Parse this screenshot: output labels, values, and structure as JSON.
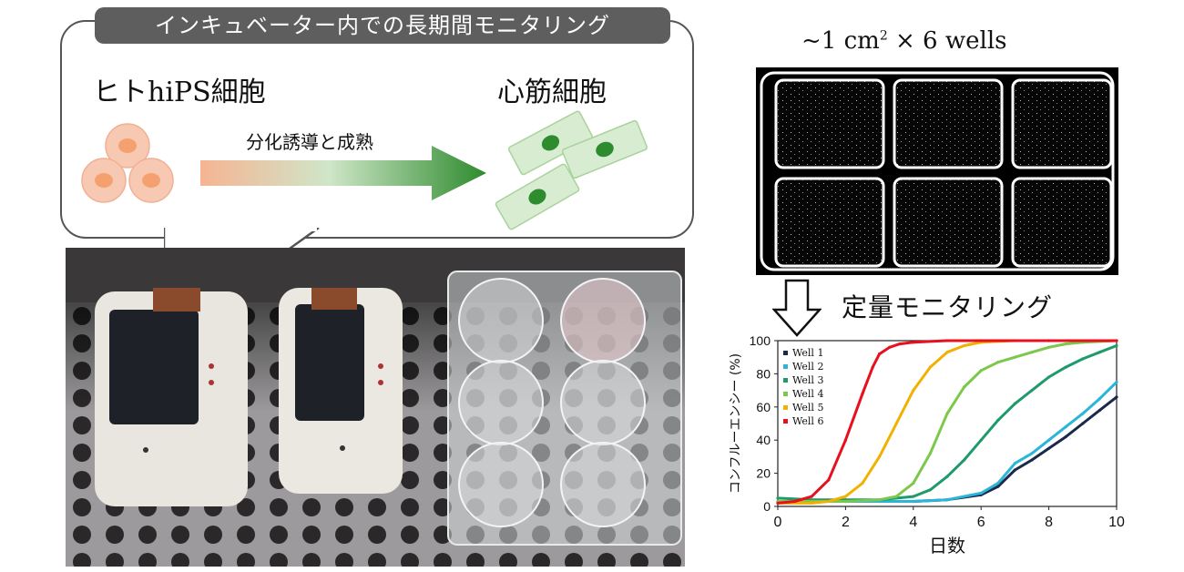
{
  "banner": "インキュベーター内での長期間モニタリング",
  "hips_label": "ヒトhiPS細胞",
  "cardio_label": "心筋細胞",
  "arrow_label": "分化誘導と成熟",
  "plate_caption": {
    "prefix": "~1 cm",
    "sup": "2",
    "suffix": " × 6 wells"
  },
  "monitor_label": "定量モニタリング",
  "colors": {
    "arrow_start": "#f6b493",
    "arrow_end": "#2e8b2e",
    "cell_pink": "#f8c9b2",
    "cell_nucleus": "#f5a06f",
    "cardio_fill": "#d7ecd0",
    "cardio_nucleus": "#2e8b2e"
  },
  "chart_data": {
    "type": "line",
    "xlabel": "日数",
    "ylabel": "コンフルーエンシー (%)",
    "xlim": [
      0,
      10
    ],
    "ylim": [
      0,
      100
    ],
    "xticks": [
      "0",
      "2",
      "4",
      "6",
      "8",
      "10"
    ],
    "yticks": [
      "0",
      "20",
      "40",
      "60",
      "80",
      "100"
    ],
    "legend_position": "top-left",
    "series": [
      {
        "name": "Well 1",
        "color": "#1a2a4a",
        "x": [
          0,
          1,
          2,
          3,
          4,
          5,
          6,
          6.5,
          7,
          7.5,
          8,
          8.5,
          9,
          9.5,
          10
        ],
        "values": [
          3,
          3,
          3,
          3,
          3,
          4,
          7,
          12,
          22,
          28,
          35,
          42,
          50,
          58,
          66
        ]
      },
      {
        "name": "Well 2",
        "color": "#2bb5d8",
        "x": [
          0,
          1,
          2,
          3,
          4,
          5,
          6,
          6.5,
          7,
          7.5,
          8,
          8.5,
          9,
          9.5,
          10
        ],
        "values": [
          3,
          3,
          3,
          3,
          3,
          4,
          8,
          14,
          26,
          32,
          40,
          48,
          56,
          65,
          75
        ]
      },
      {
        "name": "Well 3",
        "color": "#1f9a6a",
        "x": [
          0,
          1,
          2,
          3,
          4,
          4.5,
          5,
          5.5,
          6,
          6.5,
          7,
          7.5,
          8,
          8.5,
          9,
          9.5,
          10
        ],
        "values": [
          5,
          4,
          4,
          4,
          6,
          10,
          18,
          28,
          40,
          52,
          62,
          70,
          78,
          84,
          89,
          93,
          97
        ]
      },
      {
        "name": "Well 4",
        "color": "#7cc84a",
        "x": [
          0,
          1,
          2,
          3,
          3.5,
          4,
          4.5,
          5,
          5.5,
          6,
          6.5,
          7,
          7.5,
          8,
          8.5,
          9,
          10
        ],
        "values": [
          3,
          3,
          3,
          4,
          6,
          14,
          32,
          56,
          72,
          82,
          87,
          90,
          93,
          96,
          98,
          99,
          100
        ]
      },
      {
        "name": "Well 5",
        "color": "#f2b100",
        "x": [
          0,
          1,
          1.5,
          2,
          2.5,
          3,
          3.5,
          4,
          4.5,
          5,
          5.5,
          6,
          7,
          8,
          10
        ],
        "values": [
          2,
          2,
          3,
          6,
          14,
          30,
          50,
          70,
          84,
          93,
          97,
          99,
          100,
          100,
          100
        ]
      },
      {
        "name": "Well 6",
        "color": "#e8101e",
        "x": [
          0,
          0.5,
          1,
          1.5,
          2,
          2.5,
          2.8,
          3,
          3.3,
          3.6,
          4,
          5,
          6,
          8,
          10
        ],
        "values": [
          2,
          3,
          6,
          16,
          40,
          68,
          84,
          92,
          96,
          98,
          99,
          100,
          100,
          100,
          100
        ]
      }
    ]
  }
}
